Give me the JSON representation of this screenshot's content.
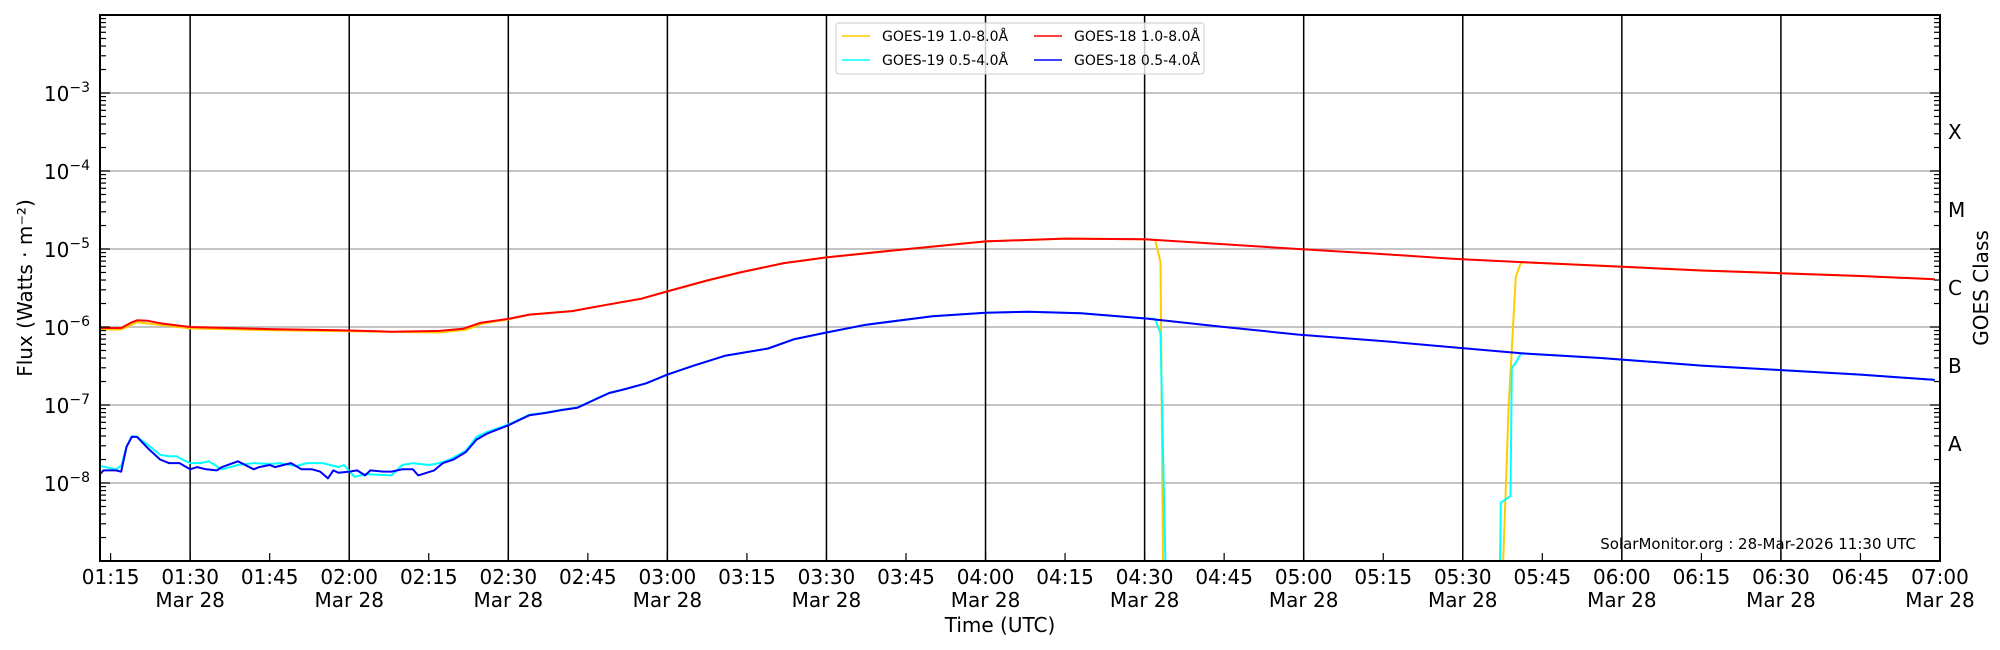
{
  "chart_data": {
    "type": "line",
    "xlabel": "Time (UTC)",
    "ylabel": "Flux (Watts · m⁻²)",
    "ylabel_right": "GOES Class",
    "yscale": "log",
    "ylim": [
      1e-09,
      0.01
    ],
    "xlim": [
      "01:13",
      "07:00"
    ],
    "grid": "horizontal at decades",
    "legend_position": "top-center",
    "watermark": "SolarMonitor.org : 28-Mar-2026 11:30 UTC",
    "yticks": [
      {
        "value": 1e-08,
        "base": "10",
        "exp": "−8"
      },
      {
        "value": 1e-07,
        "base": "10",
        "exp": "−7"
      },
      {
        "value": 1e-06,
        "base": "10",
        "exp": "−6"
      },
      {
        "value": 1e-05,
        "base": "10",
        "exp": "−5"
      },
      {
        "value": 0.0001,
        "base": "10",
        "exp": "−4"
      },
      {
        "value": 0.001,
        "base": "10",
        "exp": "−3"
      }
    ],
    "goes_classes": [
      {
        "label": "A",
        "low": 1e-08,
        "high": 1e-07
      },
      {
        "label": "B",
        "low": 1e-07,
        "high": 1e-06
      },
      {
        "label": "C",
        "low": 1e-06,
        "high": 1e-05
      },
      {
        "label": "M",
        "low": 1e-05,
        "high": 0.0001
      },
      {
        "label": "X",
        "low": 0.0001,
        "high": 0.001
      }
    ],
    "xticks": [
      {
        "time": "01:15",
        "label": "01:15",
        "date": ""
      },
      {
        "time": "01:30",
        "label": "01:30",
        "date": "Mar 28"
      },
      {
        "time": "01:45",
        "label": "01:45",
        "date": ""
      },
      {
        "time": "02:00",
        "label": "02:00",
        "date": "Mar 28"
      },
      {
        "time": "02:15",
        "label": "02:15",
        "date": ""
      },
      {
        "time": "02:30",
        "label": "02:30",
        "date": "Mar 28"
      },
      {
        "time": "02:45",
        "label": "02:45",
        "date": ""
      },
      {
        "time": "03:00",
        "label": "03:00",
        "date": "Mar 28"
      },
      {
        "time": "03:15",
        "label": "03:15",
        "date": ""
      },
      {
        "time": "03:30",
        "label": "03:30",
        "date": "Mar 28"
      },
      {
        "time": "03:45",
        "label": "03:45",
        "date": ""
      },
      {
        "time": "04:00",
        "label": "04:00",
        "date": "Mar 28"
      },
      {
        "time": "04:15",
        "label": "04:15",
        "date": ""
      },
      {
        "time": "04:30",
        "label": "04:30",
        "date": "Mar 28"
      },
      {
        "time": "04:45",
        "label": "04:45",
        "date": ""
      },
      {
        "time": "05:00",
        "label": "05:00",
        "date": "Mar 28"
      },
      {
        "time": "05:15",
        "label": "05:15",
        "date": ""
      },
      {
        "time": "05:30",
        "label": "05:30",
        "date": "Mar 28"
      },
      {
        "time": "05:45",
        "label": "05:45",
        "date": ""
      },
      {
        "time": "06:00",
        "label": "06:00",
        "date": "Mar 28"
      },
      {
        "time": "06:15",
        "label": "06:15",
        "date": ""
      },
      {
        "time": "06:30",
        "label": "06:30",
        "date": "Mar 28"
      },
      {
        "time": "06:45",
        "label": "06:45",
        "date": ""
      },
      {
        "time": "07:00",
        "label": "07:00",
        "date": "Mar 28"
      }
    ],
    "vertical_lines": [
      "01:30",
      "02:00",
      "02:30",
      "03:00",
      "03:30",
      "04:00",
      "04:30",
      "05:00",
      "05:30",
      "06:00",
      "06:30"
    ],
    "series": [
      {
        "name": "GOES-19 1.0-8.0Å",
        "color": "#ffcc00",
        "x": [
          "01:13",
          "01:17",
          "01:20",
          "01:30",
          "01:45",
          "02:00",
          "02:17",
          "02:22",
          "02:25",
          "02:30",
          "02:34",
          "02:42",
          "02:48:40",
          "02:55",
          "03:00",
          "03:07:30",
          "03:13:40",
          "03:22",
          "03:30",
          "03:44",
          "04:00",
          "04:15",
          "04:30",
          "04:32",
          "04:33",
          "04:33:30",
          null,
          "05:37:30",
          "05:38:40",
          "05:40",
          "05:41",
          "05:56",
          "06:15",
          "06:30",
          "06:45",
          "06:59"
        ],
        "values": [
          9.3e-07,
          9.3e-07,
          1.15e-06,
          9.6e-07,
          9.1e-07,
          8.8e-07,
          8.5e-07,
          9.2e-07,
          1.1e-06,
          1.25e-06,
          1.44e-06,
          1.6e-06,
          1.93e-06,
          2.3e-06,
          2.86e-06,
          3.95e-06,
          5e-06,
          6.6e-06,
          7.8e-06,
          9.8e-06,
          1.25e-05,
          1.36e-05,
          1.33e-05,
          1.3e-05,
          6.8e-06,
          1e-10,
          null,
          1e-10,
          1e-07,
          4.4e-06,
          6.8e-06,
          6.1e-06,
          5.3e-06,
          4.9e-06,
          4.5e-06,
          4.1e-06
        ]
      },
      {
        "name": "GOES-18 1.0-8.0Å",
        "color": "#ff0000",
        "x": [
          "01:13",
          "01:17",
          "01:19",
          "01:20",
          "01:22",
          "01:25",
          "01:30",
          "01:45",
          "01:58",
          "02:08",
          "02:17",
          "02:21:30",
          "02:24:40",
          "02:30",
          "02:34",
          "02:42",
          "02:48:40",
          "02:55",
          "03:00",
          "03:07:30",
          "03:13:40",
          "03:22",
          "03:30",
          "03:44",
          "04:00",
          "04:15",
          "04:30",
          "04:45",
          "04:59",
          "05:15",
          "05:28",
          "05:41",
          "05:56",
          "06:15",
          "06:30",
          "06:45",
          "06:59"
        ],
        "values": [
          9.7e-07,
          9.7e-07,
          1.15e-06,
          1.22e-06,
          1.2e-06,
          1.1e-06,
          1e-06,
          9.4e-07,
          9.1e-07,
          8.7e-07,
          8.9e-07,
          9.5e-07,
          1.13e-06,
          1.27e-06,
          1.44e-06,
          1.6e-06,
          1.93e-06,
          2.3e-06,
          2.86e-06,
          3.95e-06,
          5e-06,
          6.6e-06,
          7.8e-06,
          9.8e-06,
          1.25e-05,
          1.36e-05,
          1.33e-05,
          1.15e-05,
          1e-05,
          8.6e-06,
          7.5e-06,
          6.8e-06,
          6.1e-06,
          5.3e-06,
          4.9e-06,
          4.5e-06,
          4.1e-06
        ]
      },
      {
        "name": "GOES-19 0.5-4.0Å",
        "color": "#00ffff",
        "x": [
          "01:13",
          "01:16",
          "01:17",
          "01:18",
          "01:19",
          "01:20",
          "01:22",
          "01:24:20",
          "01:26",
          "01:27:30",
          "01:28:30",
          "01:30",
          "01:32",
          "01:33:30",
          "01:36",
          "01:39",
          "01:42",
          "01:45",
          "01:47",
          "01:50",
          "01:52",
          "01:55",
          "01:58",
          "01:59",
          "02:01",
          "02:03",
          "02:08",
          "02:10",
          "02:12",
          "02:15",
          "02:17",
          "02:19",
          "02:22",
          "02:24",
          "02:26",
          "02:30",
          "02:34",
          "02:37",
          "02:40",
          "02:43",
          "02:47",
          "02:49",
          "02:52",
          "02:56",
          "03:00",
          "03:05",
          "03:11",
          "03:19",
          "03:24",
          "03:30",
          "03:37:30",
          "03:50",
          "04:00",
          "04:08",
          "04:18",
          "04:30",
          "04:32",
          "04:33",
          "04:34",
          null,
          "05:37",
          "05:37:10",
          "05:39",
          "05:39:15",
          "05:40",
          "05:41",
          "05:56",
          "06:15",
          "06:30",
          "06:45",
          "06:59"
        ],
        "values": [
          1.65e-08,
          1.5e-08,
          1.65e-08,
          2.9e-08,
          4e-08,
          3.9e-08,
          3.1e-08,
          2.3e-08,
          2.2e-08,
          2.2e-08,
          2e-08,
          1.8e-08,
          1.8e-08,
          1.9e-08,
          1.5e-08,
          1.7e-08,
          1.8e-08,
          1.75e-08,
          1.8e-08,
          1.65e-08,
          1.8e-08,
          1.8e-08,
          1.6e-08,
          1.7e-08,
          1.2e-08,
          1.3e-08,
          1.25e-08,
          1.7e-08,
          1.8e-08,
          1.7e-08,
          1.8e-08,
          2e-08,
          2.6e-08,
          3.9e-08,
          4.5e-08,
          5.6e-08,
          7.5e-08,
          8e-08,
          8.7e-08,
          9.3e-08,
          1.24e-07,
          1.43e-07,
          1.6e-07,
          1.9e-07,
          2.45e-07,
          3.2e-07,
          4.3e-07,
          5.3e-07,
          7e-07,
          8.5e-07,
          1.07e-06,
          1.37e-06,
          1.52e-06,
          1.57e-06,
          1.5e-06,
          1.29e-06,
          1.27e-06,
          8.3e-07,
          1e-10,
          null,
          1e-10,
          5.6e-09,
          6.8e-09,
          3e-07,
          3.5e-07,
          4.6e-07,
          4e-07,
          3.2e-07,
          2.8e-07,
          2.45e-07,
          2.1e-07
        ]
      },
      {
        "name": "GOES-18 0.5-4.0Å",
        "color": "#0000ff",
        "x": [
          "01:13",
          "01:13:40",
          "01:16",
          "01:17",
          "01:18",
          "01:19",
          "01:20",
          "01:22",
          "01:24:20",
          "01:26",
          "01:28",
          "01:30",
          "01:31:20",
          "01:33",
          "01:35",
          "01:36",
          "01:39",
          "01:42",
          "01:43",
          "01:45",
          "01:46",
          "01:49",
          "01:51",
          "01:53",
          "01:54:30",
          "01:56",
          "01:57",
          "01:58",
          "02:00",
          "02:01:30",
          "02:03",
          "02:04",
          "02:06:30",
          "02:08",
          "02:10",
          "02:12",
          "02:13",
          "02:16",
          "02:17:40",
          "02:19:40",
          "02:22",
          "02:24",
          "02:26",
          "02:30",
          "02:34",
          "02:37",
          "02:40",
          "02:43",
          "02:47",
          "02:49",
          "02:52",
          "02:56",
          "03:00",
          "03:05",
          "03:11",
          "03:19",
          "03:24",
          "03:30",
          "03:37:30",
          "03:50",
          "04:00",
          "04:08",
          "04:18",
          "04:30",
          "04:45",
          "04:59",
          "05:15",
          "05:28",
          "05:41",
          "05:56",
          "06:15",
          "06:30",
          "06:45",
          "06:59"
        ],
        "values": [
          1.3e-08,
          1.45e-08,
          1.45e-08,
          1.4e-08,
          2.9e-08,
          3.9e-08,
          3.9e-08,
          2.8e-08,
          2e-08,
          1.8e-08,
          1.8e-08,
          1.5e-08,
          1.6e-08,
          1.5e-08,
          1.45e-08,
          1.6e-08,
          1.9e-08,
          1.5e-08,
          1.6e-08,
          1.7e-08,
          1.6e-08,
          1.8e-08,
          1.5e-08,
          1.5e-08,
          1.4e-08,
          1.15e-08,
          1.45e-08,
          1.35e-08,
          1.4e-08,
          1.45e-08,
          1.25e-08,
          1.45e-08,
          1.4e-08,
          1.4e-08,
          1.5e-08,
          1.5e-08,
          1.25e-08,
          1.45e-08,
          1.8e-08,
          2e-08,
          2.5e-08,
          3.6e-08,
          4.3e-08,
          5.5e-08,
          7.4e-08,
          7.9e-08,
          8.6e-08,
          9.2e-08,
          1.23e-07,
          1.42e-07,
          1.6e-07,
          1.9e-07,
          2.45e-07,
          3.2e-07,
          4.3e-07,
          5.3e-07,
          7e-07,
          8.5e-07,
          1.07e-06,
          1.37e-06,
          1.52e-06,
          1.57e-06,
          1.5e-06,
          1.29e-06,
          1e-06,
          8e-07,
          6.6e-07,
          5.5e-07,
          4.6e-07,
          4e-07,
          3.2e-07,
          2.8e-07,
          2.45e-07,
          2.1e-07
        ]
      }
    ],
    "legend_order": [
      0,
      2,
      1,
      3
    ]
  }
}
